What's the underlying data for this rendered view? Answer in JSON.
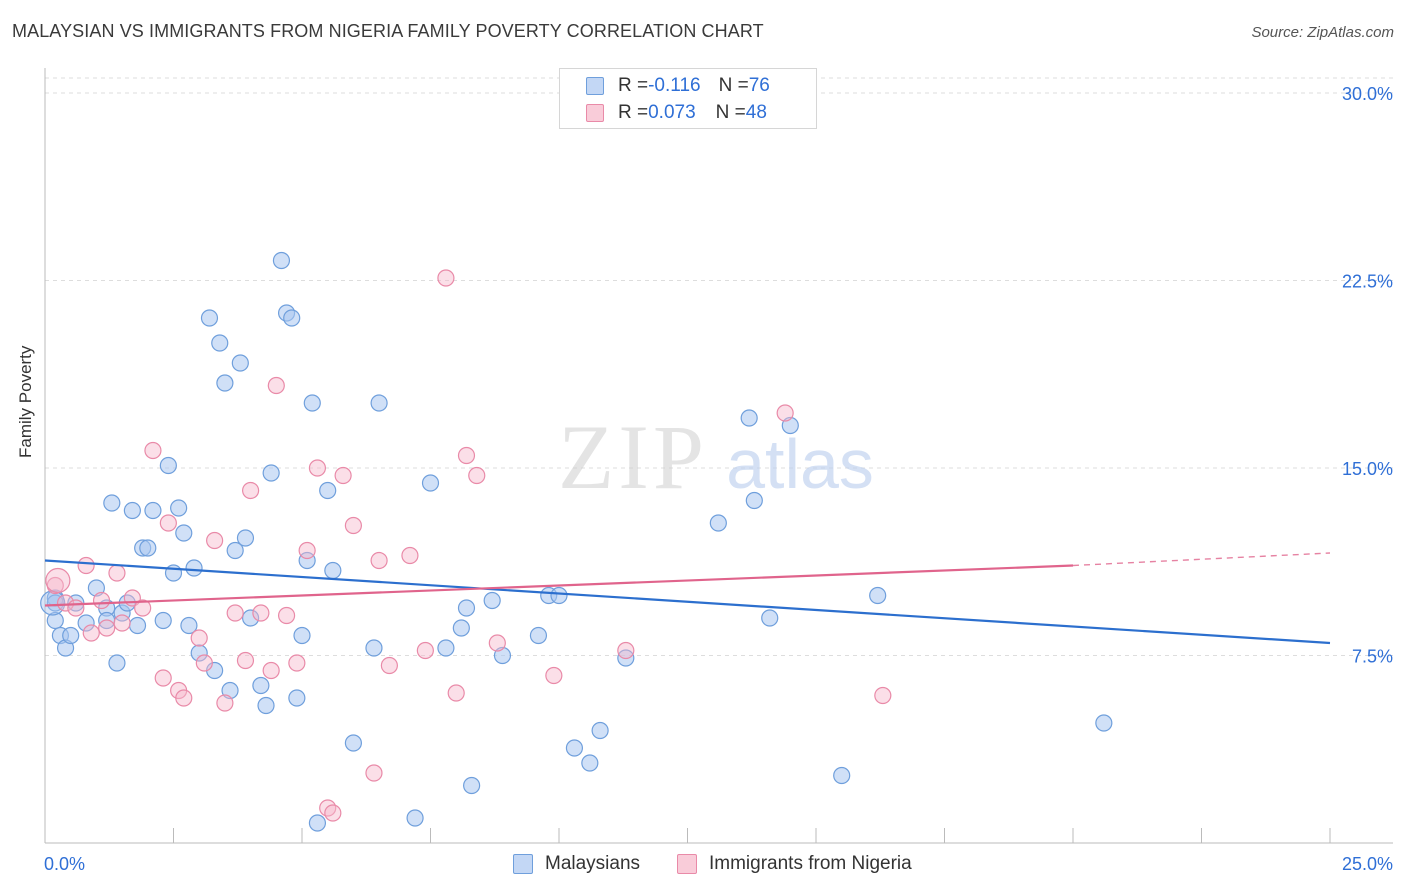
{
  "title": "MALAYSIAN VS IMMIGRANTS FROM NIGERIA FAMILY POVERTY CORRELATION CHART",
  "source": "Source: ZipAtlas.com",
  "watermark": {
    "zip": "ZIP",
    "atlas": "atlas"
  },
  "legend": {
    "blue": {
      "r_label": "R = ",
      "r_value": "-0.116",
      "n_label": "N = ",
      "n_value": "76"
    },
    "pink": {
      "r_label": "R = ",
      "r_value": "0.073",
      "n_label": "N = ",
      "n_value": "48"
    }
  },
  "bottom_legend": {
    "blue_label": "Malaysians",
    "pink_label": "Immigrants from Nigeria"
  },
  "colors": {
    "blue_fill": "#a9c6f0",
    "blue_stroke": "#6f9fdc",
    "blue_line": "#2c6fce",
    "pink_fill": "#f6b8cb",
    "pink_stroke": "#e98aa8",
    "pink_line": "#e0648c",
    "tick_text": "#2f6fd6",
    "grid": "#dddddd"
  },
  "chart_data": {
    "type": "scatter",
    "title": "MALAYSIAN VS IMMIGRANTS FROM NIGERIA FAMILY POVERTY CORRELATION CHART",
    "xlabel": "",
    "ylabel": "Family Poverty",
    "xlim": [
      0,
      25
    ],
    "ylim": [
      0,
      31
    ],
    "x_tick_labels": [
      {
        "value": 0,
        "label": "0.0%"
      },
      {
        "value": 25,
        "label": "25.0%"
      }
    ],
    "y_tick_labels": [
      {
        "value": 7.5,
        "label": "7.5%"
      },
      {
        "value": 15,
        "label": "15.0%"
      },
      {
        "value": 22.5,
        "label": "22.5%"
      },
      {
        "value": 30,
        "label": "30.0%"
      }
    ],
    "grid": true,
    "legend_position": "top-center",
    "series": [
      {
        "name": "Malaysians",
        "color": "#a9c6f0",
        "trend": {
          "x": [
            0,
            25
          ],
          "y": [
            11.3,
            8.0
          ],
          "style": "solid"
        },
        "points": [
          [
            0.2,
            9.8
          ],
          [
            0.2,
            8.9
          ],
          [
            0.3,
            8.3
          ],
          [
            0.4,
            7.8
          ],
          [
            0.5,
            8.3
          ],
          [
            0.6,
            9.6
          ],
          [
            0.8,
            8.8
          ],
          [
            1.0,
            10.2
          ],
          [
            1.2,
            9.4
          ],
          [
            1.2,
            8.9
          ],
          [
            1.3,
            13.6
          ],
          [
            1.4,
            7.2
          ],
          [
            1.5,
            9.2
          ],
          [
            1.6,
            9.6
          ],
          [
            1.7,
            13.3
          ],
          [
            1.8,
            8.7
          ],
          [
            1.9,
            11.8
          ],
          [
            2.0,
            11.8
          ],
          [
            2.1,
            13.3
          ],
          [
            2.3,
            8.9
          ],
          [
            2.4,
            15.1
          ],
          [
            2.5,
            10.8
          ],
          [
            2.6,
            13.4
          ],
          [
            2.7,
            12.4
          ],
          [
            2.8,
            8.7
          ],
          [
            2.9,
            11.0
          ],
          [
            3.0,
            7.6
          ],
          [
            3.2,
            21.0
          ],
          [
            3.3,
            6.9
          ],
          [
            3.4,
            20.0
          ],
          [
            3.5,
            18.4
          ],
          [
            3.6,
            6.1
          ],
          [
            3.7,
            11.7
          ],
          [
            3.8,
            19.2
          ],
          [
            4.0,
            9.0
          ],
          [
            4.2,
            6.3
          ],
          [
            4.3,
            5.5
          ],
          [
            4.4,
            14.8
          ],
          [
            4.6,
            23.3
          ],
          [
            4.7,
            21.2
          ],
          [
            4.8,
            21.0
          ],
          [
            4.9,
            5.8
          ],
          [
            5.0,
            8.3
          ],
          [
            5.1,
            11.3
          ],
          [
            5.2,
            17.6
          ],
          [
            5.3,
            0.8
          ],
          [
            5.5,
            14.1
          ],
          [
            5.6,
            10.9
          ],
          [
            6.0,
            4.0
          ],
          [
            6.4,
            7.8
          ],
          [
            6.5,
            17.6
          ],
          [
            7.2,
            1.0
          ],
          [
            7.5,
            14.4
          ],
          [
            7.8,
            7.8
          ],
          [
            8.1,
            8.6
          ],
          [
            8.2,
            9.4
          ],
          [
            8.3,
            2.3
          ],
          [
            8.7,
            9.7
          ],
          [
            8.9,
            7.5
          ],
          [
            9.6,
            8.3
          ],
          [
            9.8,
            9.9
          ],
          [
            10.0,
            9.9
          ],
          [
            10.3,
            3.8
          ],
          [
            10.6,
            3.2
          ],
          [
            10.8,
            4.5
          ],
          [
            11.3,
            7.4
          ],
          [
            13.1,
            12.8
          ],
          [
            13.7,
            17.0
          ],
          [
            13.8,
            13.7
          ],
          [
            14.1,
            9.0
          ],
          [
            14.5,
            16.7
          ],
          [
            15.5,
            2.7
          ],
          [
            16.2,
            9.9
          ],
          [
            20.6,
            4.8
          ],
          [
            0.2,
            9.6
          ],
          [
            3.9,
            12.2
          ]
        ]
      },
      {
        "name": "Immigrants from Nigeria",
        "color": "#f6b8cb",
        "trend": {
          "x": [
            0,
            20
          ],
          "y": [
            9.5,
            11.1
          ],
          "style": "solid",
          "dashed_to": [
            25,
            11.6
          ]
        },
        "points": [
          [
            0.2,
            10.3
          ],
          [
            0.4,
            9.6
          ],
          [
            0.6,
            9.4
          ],
          [
            0.8,
            11.1
          ],
          [
            0.9,
            8.4
          ],
          [
            1.1,
            9.7
          ],
          [
            1.2,
            8.6
          ],
          [
            1.4,
            10.8
          ],
          [
            1.5,
            8.8
          ],
          [
            1.7,
            9.8
          ],
          [
            1.9,
            9.4
          ],
          [
            2.1,
            15.7
          ],
          [
            2.3,
            6.6
          ],
          [
            2.4,
            12.8
          ],
          [
            2.6,
            6.1
          ],
          [
            2.7,
            5.8
          ],
          [
            3.0,
            8.2
          ],
          [
            3.1,
            7.2
          ],
          [
            3.3,
            12.1
          ],
          [
            3.5,
            5.6
          ],
          [
            3.7,
            9.2
          ],
          [
            3.9,
            7.3
          ],
          [
            4.0,
            14.1
          ],
          [
            4.2,
            9.2
          ],
          [
            4.4,
            6.9
          ],
          [
            4.5,
            18.3
          ],
          [
            4.7,
            9.1
          ],
          [
            4.9,
            7.2
          ],
          [
            5.1,
            11.7
          ],
          [
            5.3,
            15.0
          ],
          [
            5.5,
            1.4
          ],
          [
            5.6,
            1.2
          ],
          [
            5.8,
            14.7
          ],
          [
            6.0,
            12.7
          ],
          [
            6.4,
            2.8
          ],
          [
            6.5,
            11.3
          ],
          [
            6.7,
            7.1
          ],
          [
            7.1,
            11.5
          ],
          [
            7.4,
            7.7
          ],
          [
            7.8,
            22.6
          ],
          [
            8.0,
            6.0
          ],
          [
            8.2,
            15.5
          ],
          [
            8.4,
            14.7
          ],
          [
            8.8,
            8.0
          ],
          [
            9.9,
            6.7
          ],
          [
            11.3,
            7.7
          ],
          [
            16.3,
            5.9
          ],
          [
            14.4,
            17.2
          ]
        ]
      }
    ]
  }
}
